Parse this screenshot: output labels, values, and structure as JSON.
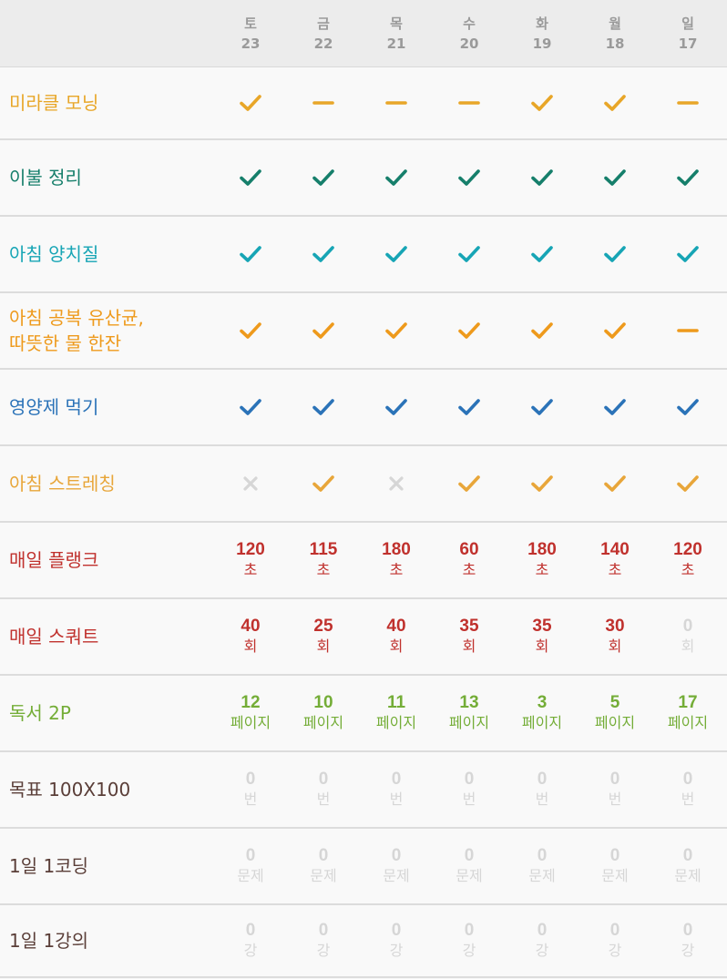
{
  "colors": {
    "orange": "#e8a628",
    "teal": "#167f6b",
    "cyan": "#17a5b5",
    "dark_orange": "#ee9a1c",
    "blue": "#2b73b8",
    "gold": "#e8a63a",
    "red": "#c0312d",
    "green": "#74ad37",
    "brown": "#5a3e38",
    "gray": "#d6d6d6"
  },
  "days": [
    {
      "dow": "토",
      "date": "23"
    },
    {
      "dow": "금",
      "date": "22"
    },
    {
      "dow": "목",
      "date": "21"
    },
    {
      "dow": "수",
      "date": "20"
    },
    {
      "dow": "화",
      "date": "19"
    },
    {
      "dow": "월",
      "date": "18"
    },
    {
      "dow": "일",
      "date": "17"
    }
  ],
  "habits": [
    {
      "name": "미라클 모닝",
      "color": "orange",
      "type": "check",
      "cells": [
        "check",
        "dash",
        "dash",
        "dash",
        "check",
        "check",
        "dash"
      ]
    },
    {
      "name": "이불 정리",
      "color": "teal",
      "type": "check",
      "cells": [
        "check",
        "check",
        "check",
        "check",
        "check",
        "check",
        "check"
      ]
    },
    {
      "name": "아침 양치질",
      "color": "cyan",
      "type": "check",
      "cells": [
        "check",
        "check",
        "check",
        "check",
        "check",
        "check",
        "check"
      ]
    },
    {
      "name": "아침 공복 유산균,\n따뜻한 물 한잔",
      "color": "dark_orange",
      "type": "check",
      "cells": [
        "check",
        "check",
        "check",
        "check",
        "check",
        "check",
        "dash"
      ]
    },
    {
      "name": "영양제 먹기",
      "color": "blue",
      "type": "check",
      "cells": [
        "check",
        "check",
        "check",
        "check",
        "check",
        "check",
        "check"
      ]
    },
    {
      "name": "아침 스트레칭",
      "color": "gold",
      "type": "check",
      "cells": [
        "x",
        "check",
        "x",
        "check",
        "check",
        "check",
        "check"
      ]
    },
    {
      "name": "매일 플랭크",
      "color": "red",
      "type": "number",
      "unit": "초",
      "cells": [
        "120",
        "115",
        "180",
        "60",
        "180",
        "140",
        "120"
      ]
    },
    {
      "name": "매일 스쿼트",
      "color": "red",
      "type": "number",
      "unit": "회",
      "cells": [
        "40",
        "25",
        "40",
        "35",
        "35",
        "30",
        "0"
      ]
    },
    {
      "name": "독서 2P",
      "color": "green",
      "type": "number",
      "unit": "페이지",
      "cells": [
        "12",
        "10",
        "11",
        "13",
        "3",
        "5",
        "17"
      ]
    },
    {
      "name": "목표 100X100",
      "color": "brown",
      "type": "number",
      "unit": "번",
      "cells": [
        "0",
        "0",
        "0",
        "0",
        "0",
        "0",
        "0"
      ]
    },
    {
      "name": "1일 1코딩",
      "color": "brown",
      "type": "number",
      "unit": "문제",
      "cells": [
        "0",
        "0",
        "0",
        "0",
        "0",
        "0",
        "0"
      ]
    },
    {
      "name": "1일 1강의",
      "color": "brown",
      "type": "number",
      "unit": "강",
      "cells": [
        "0",
        "0",
        "0",
        "0",
        "0",
        "0",
        "0"
      ]
    }
  ]
}
